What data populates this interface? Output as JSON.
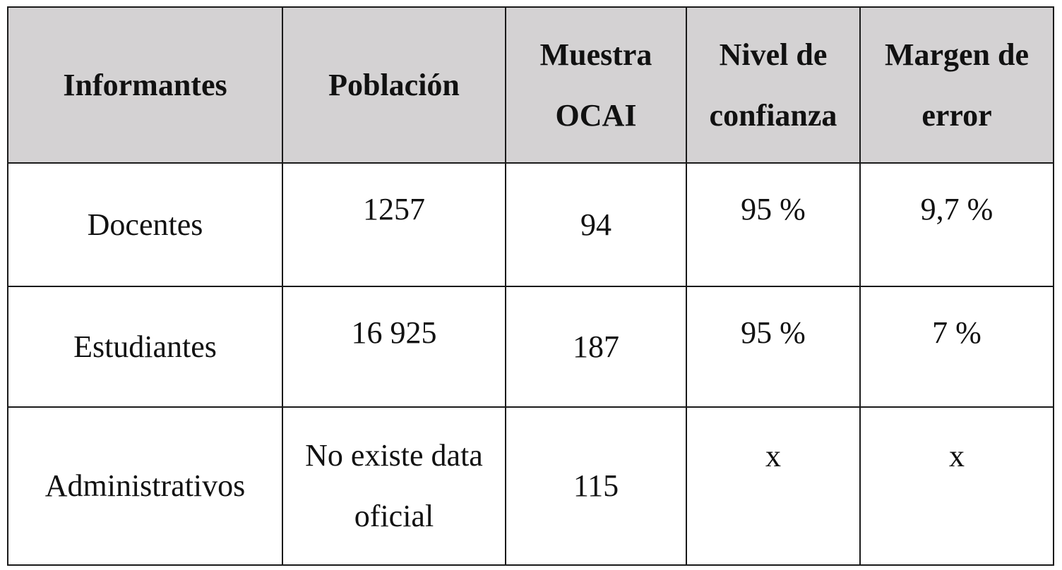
{
  "table": {
    "headers": [
      "Informantes",
      "Población",
      "Muestra OCAI",
      "Nivel de confianza",
      "Margen de error"
    ],
    "rows": [
      {
        "informantes": "Docentes",
        "poblacion": "1257",
        "muestra": "94",
        "confianza": "95 %",
        "margen": "9,7 %"
      },
      {
        "informantes": "Estudiantes",
        "poblacion": "16 925",
        "muestra": "187",
        "confianza": "95 %",
        "margen": "7 %"
      },
      {
        "informantes": "Administrativos",
        "poblacion": "No existe data oficial",
        "muestra": "115",
        "confianza": "x",
        "margen": "x"
      }
    ]
  }
}
